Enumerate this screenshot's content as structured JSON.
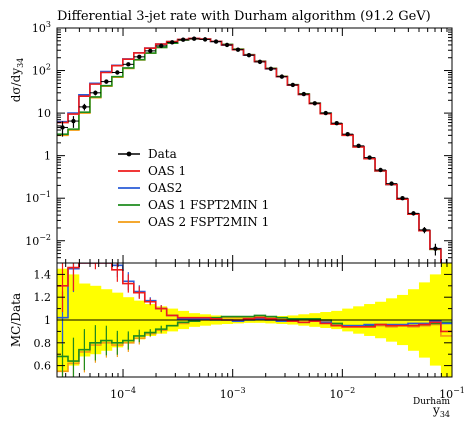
{
  "chart_data": {
    "type": "line",
    "title": "Differential 3-jet rate with Durham algorithm (91.2 GeV)",
    "xscale": "log",
    "xlim": [
      2.5e-05,
      0.1
    ],
    "main": {
      "yscale": "log",
      "ylim": [
        0.003,
        1000
      ],
      "ylabel": "dσ/dy34",
      "ytick_labels": [
        "10^-2",
        "10^-1",
        "1",
        "10",
        "10^2",
        "10^3"
      ],
      "ytick_values": [
        0.01,
        0.1,
        1,
        10,
        100,
        1000
      ]
    },
    "ratio": {
      "ylim": [
        0.5,
        1.5
      ],
      "ylabel": "MC/Data",
      "ytick_labels": [
        "0.6",
        "0.8",
        "1",
        "1.2",
        "1.4"
      ],
      "ytick_values": [
        0.6,
        0.8,
        1.0,
        1.2,
        1.4
      ]
    },
    "xtick_labels": [
      "10^-4",
      "10^-3",
      "10^-2",
      "10^-1"
    ],
    "xtick_values": [
      0.0001,
      0.001,
      0.01,
      0.1
    ],
    "xlabel": "y34 Durham",
    "bin_edges": [
      2.5e-05,
      3.15e-05,
      3.96e-05,
      4.99e-05,
      6.28e-05,
      7.91e-05,
      9.96e-05,
      0.0001254,
      0.0001579,
      0.0001988,
      0.0002503,
      0.0003151,
      0.0003967,
      0.0004995,
      0.0006288,
      0.0007916,
      0.0009966,
      0.0012547,
      0.0015796,
      0.0019886,
      0.0025035,
      0.0031518,
      0.003968,
      0.0049955,
      0.0062891,
      0.0079176,
      0.0099679,
      0.012549,
      0.015799,
      0.01989,
      0.02504,
      0.031524,
      0.039687,
      0.049964,
      0.062902,
      0.07919,
      0.1
    ],
    "series": [
      {
        "name": "Data",
        "color": "#000000",
        "values": [
          4.6,
          6.5,
          14,
          30,
          55,
          90,
          140,
          210,
          290,
          380,
          460,
          530,
          560,
          540,
          480,
          400,
          310,
          230,
          160,
          110,
          72,
          46,
          28,
          17,
          10,
          5.8,
          3.2,
          1.7,
          0.9,
          0.46,
          0.22,
          0.1,
          0.044,
          0.018,
          0.0065,
          0.0022
        ],
        "errors": [
          1.8,
          2.0,
          2.5,
          4,
          6,
          7,
          8,
          9,
          10,
          10,
          10,
          10,
          10,
          10,
          10,
          9,
          7,
          5,
          4,
          3,
          2,
          1.2,
          0.8,
          0.5,
          0.3,
          0.2,
          0.12,
          0.07,
          0.04,
          0.025,
          0.014,
          0.008,
          0.005,
          0.003,
          0.002,
          0.0015
        ]
      },
      {
        "name": "OAS 1",
        "color": "#ee1c1c",
        "values": [
          6.0,
          9.5,
          25,
          48,
          90,
          130,
          185,
          260,
          335,
          420,
          480,
          540,
          570,
          550,
          485,
          400,
          310,
          232,
          163,
          111,
          72,
          45.5,
          27.5,
          16.8,
          9.7,
          5.5,
          3.0,
          1.6,
          0.85,
          0.44,
          0.21,
          0.095,
          0.042,
          0.0172,
          0.0064,
          0.0022
        ],
        "ratio": [
          1.3,
          1.46,
          1.78,
          1.6,
          1.63,
          1.44,
          1.32,
          1.24,
          1.16,
          1.1,
          1.04,
          1.02,
          1.02,
          1.02,
          1.01,
          1.0,
          1.0,
          1.01,
          1.02,
          1.01,
          1.0,
          0.99,
          0.98,
          0.99,
          0.97,
          0.95,
          0.94,
          0.94,
          0.94,
          0.96,
          0.95,
          0.95,
          0.95,
          0.96,
          0.98,
          0.9
        ]
      },
      {
        "name": "OAS2",
        "color": "#2a5bd7",
        "values": [
          6.3,
          10,
          27,
          50,
          95,
          133,
          188,
          262,
          338,
          420,
          478,
          535,
          566,
          546,
          482,
          398,
          308,
          230,
          162,
          110,
          71.5,
          45.4,
          27.5,
          16.9,
          9.8,
          5.5,
          3.05,
          1.62,
          0.86,
          0.44,
          0.21,
          0.096,
          0.043,
          0.0175,
          0.0065,
          0.0022
        ],
        "ratio": [
          1.02,
          1.45,
          1.95,
          1.66,
          1.72,
          1.48,
          1.34,
          1.25,
          1.17,
          1.1,
          1.04,
          1.01,
          1.01,
          1.01,
          1.0,
          1.0,
          0.99,
          1.0,
          1.01,
          1.0,
          0.99,
          0.99,
          0.98,
          0.99,
          0.98,
          0.95,
          0.95,
          0.95,
          0.96,
          0.96,
          0.96,
          0.96,
          0.97,
          0.97,
          0.99,
          0.97
        ]
      },
      {
        "name": "OAS 1 FSPT2MIN 1",
        "color": "#1e8c1e",
        "values": [
          3.2,
          4.2,
          10.5,
          24,
          44,
          72,
          115,
          180,
          258,
          350,
          440,
          520,
          556,
          545,
          487,
          410,
          318,
          236,
          166,
          113,
          73,
          46.5,
          28.3,
          17.2,
          10,
          5.6,
          3.05,
          1.62,
          0.86,
          0.44,
          0.21,
          0.095,
          0.042,
          0.0172,
          0.0063,
          0.0022
        ],
        "ratio": [
          0.68,
          0.64,
          0.74,
          0.8,
          0.82,
          0.8,
          0.82,
          0.86,
          0.89,
          0.92,
          0.95,
          0.98,
          0.99,
          1.01,
          1.02,
          1.03,
          1.03,
          1.03,
          1.04,
          1.03,
          1.02,
          1.01,
          1.01,
          1.01,
          1.0,
          0.97,
          0.95,
          0.95,
          0.95,
          0.96,
          0.95,
          0.95,
          0.95,
          0.96,
          0.97,
          0.98
        ]
      },
      {
        "name": "OAS 2 FSPT2MIN 1",
        "color": "#f39c12",
        "values": [
          3.0,
          4.0,
          10.0,
          23,
          43,
          70,
          112,
          177,
          255,
          348,
          438,
          518,
          555,
          544,
          487,
          410,
          317,
          235,
          165,
          112,
          72.5,
          46.2,
          28.1,
          17.1,
          9.9,
          5.55,
          3.02,
          1.61,
          0.86,
          0.44,
          0.21,
          0.095,
          0.042,
          0.0172,
          0.0063,
          0.0022
        ],
        "ratio": [
          0.55,
          0.62,
          0.72,
          0.78,
          0.8,
          0.78,
          0.8,
          0.84,
          0.88,
          0.91,
          0.95,
          0.97,
          0.99,
          1.0,
          1.01,
          1.02,
          1.02,
          1.02,
          1.03,
          1.02,
          1.01,
          1.0,
          1.0,
          1.0,
          0.99,
          0.96,
          0.94,
          0.94,
          0.94,
          0.95,
          0.94,
          0.95,
          0.94,
          0.95,
          0.96,
          0.86
        ]
      }
    ],
    "data_ratio_band": [
      0.45,
      0.4,
      0.32,
      0.3,
      0.27,
      0.24,
      0.2,
      0.17,
      0.14,
      0.12,
      0.1,
      0.08,
      0.06,
      0.05,
      0.04,
      0.035,
      0.03,
      0.025,
      0.025,
      0.03,
      0.035,
      0.04,
      0.05,
      0.06,
      0.07,
      0.08,
      0.1,
      0.12,
      0.14,
      0.16,
      0.19,
      0.22,
      0.27,
      0.33,
      0.4,
      0.5
    ],
    "legend": [
      "Data",
      "OAS 1",
      "OAS2",
      "OAS 1 FSPT2MIN 1",
      "OAS 2 FSPT2MIN 1"
    ],
    "legend_placement": "lower-left",
    "grid": false
  }
}
